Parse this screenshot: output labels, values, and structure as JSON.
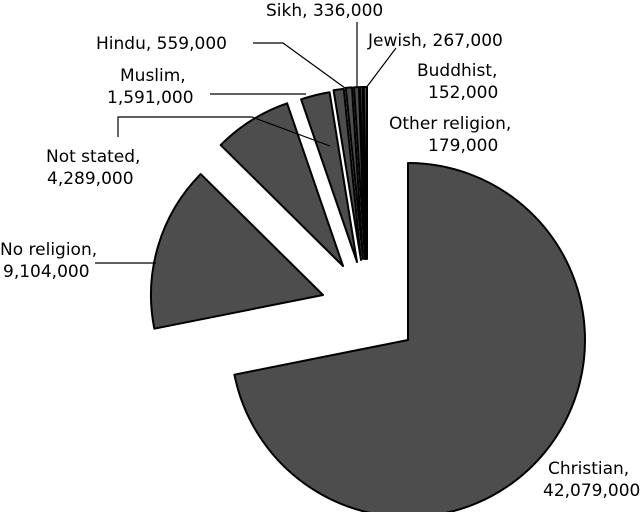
{
  "chart_data": {
    "type": "pie",
    "exploded": true,
    "slice_color": "#4d4d4d",
    "edge_color": "#000000",
    "start_angle": "12 o'clock, clockwise",
    "slices": [
      {
        "label": "Christian",
        "value": 42079000,
        "line1": "Christian,",
        "line2": "42,079,000"
      },
      {
        "label": "No religion",
        "value": 9104000,
        "line1": "No religion,",
        "line2": "9,104,000"
      },
      {
        "label": "Not stated",
        "value": 4289000,
        "line1": "Not stated,",
        "line2": "4,289,000"
      },
      {
        "label": "Muslim",
        "value": 1591000,
        "line1": "Muslim,",
        "line2": "1,591,000"
      },
      {
        "label": "Hindu",
        "value": 559000,
        "line1": "Hindu, 559,000",
        "line2": ""
      },
      {
        "label": "Sikh",
        "value": 336000,
        "line1": "Sikh, 336,000",
        "line2": ""
      },
      {
        "label": "Jewish",
        "value": 267000,
        "line1": "Jewish, 267,000",
        "line2": ""
      },
      {
        "label": "Buddhist",
        "value": 152000,
        "line1": "Buddhist,",
        "line2": "152,000"
      },
      {
        "label": "Other religion",
        "value": 179000,
        "line1": "Other religion,",
        "line2": "179,000"
      }
    ]
  }
}
